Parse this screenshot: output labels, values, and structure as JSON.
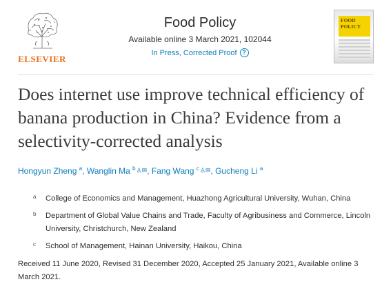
{
  "publisher": {
    "name": "ELSEVIER",
    "logo_icon": "elsevier-tree-icon"
  },
  "journal": {
    "title": "Food Policy",
    "available": "Available online 3 March 2021, 102044",
    "status_link": "In Press, Corrected Proof",
    "help_icon": "question-circle-icon",
    "cover_text": "FOOD\nPOLICY"
  },
  "article": {
    "title": "Does internet use improve technical efficiency of banana production in China? Evidence from a selectivity-corrected analysis"
  },
  "authors": [
    {
      "name": "Hongyun Zheng",
      "sup": "a",
      "icons": ""
    },
    {
      "name": "Wanglin Ma",
      "sup": "b",
      "icons": "♙✉"
    },
    {
      "name": "Fang Wang",
      "sup": "c",
      "icons": "♙✉"
    },
    {
      "name": "Gucheng Li",
      "sup": "a",
      "icons": ""
    }
  ],
  "affiliations": [
    {
      "mark": "a",
      "text": "College of Economics and Management, Huazhong Agricultural University, Wuhan, China"
    },
    {
      "mark": "b",
      "text": "Department of Global Value Chains and Trade, Faculty of Agribusiness and Commerce, Lincoln University, Christchurch, New Zealand"
    },
    {
      "mark": "c",
      "text": "School of Management, Hainan University, Haikou, China"
    }
  ],
  "dates": "Received 11 June 2020, Revised 31 December 2020, Accepted 25 January 2021, Available online 3 March 2021.",
  "colors": {
    "link": "#0c7dbb",
    "publisher": "#e9711c",
    "cover_band": "#f5d300"
  }
}
